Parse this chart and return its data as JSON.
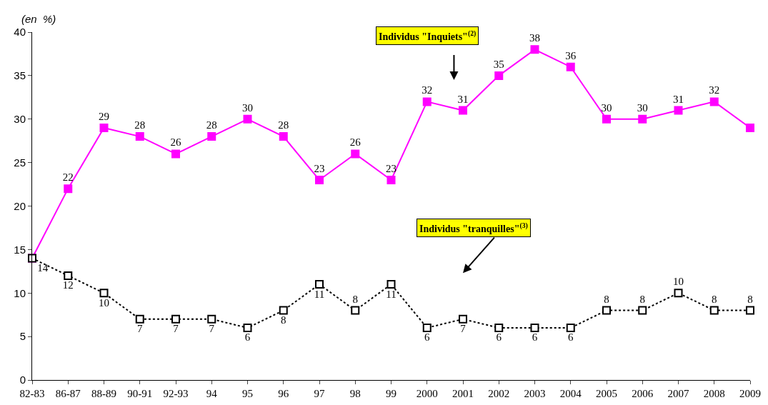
{
  "chart_data": {
    "type": "line",
    "ylabel": "(en  %)",
    "categories": [
      "82-83",
      "86-87",
      "88-89",
      "90-91",
      "92-93",
      "94",
      "95",
      "96",
      "97",
      "98",
      "99",
      "2000",
      "2001",
      "2002",
      "2003",
      "2004",
      "2005",
      "2006",
      "2007",
      "2008",
      "2009"
    ],
    "series": [
      {
        "color": "#ff00ff",
        "line_style": "solid",
        "values": [
          14,
          22,
          29,
          28,
          26,
          28,
          30,
          28,
          23,
          26,
          23,
          32,
          31,
          35,
          38,
          36,
          30,
          30,
          31,
          32,
          29
        ],
        "value_labels": [
          null,
          "22",
          "29",
          "28",
          "26",
          "28",
          "30",
          "28",
          "23",
          "26",
          "23",
          "32",
          "31",
          "35",
          "38",
          "36",
          "30",
          "30",
          "31",
          "32",
          null
        ]
      },
      {
        "color": "#000000",
        "line_style": "dotted",
        "values": [
          14,
          12,
          10,
          7,
          7,
          7,
          6,
          8,
          11,
          8,
          11,
          6,
          7,
          6,
          6,
          6,
          8,
          8,
          10,
          8,
          8
        ],
        "value_labels": [
          "14",
          "12",
          "10",
          "7",
          "7",
          "7",
          "6",
          "8",
          "11",
          "8",
          "11",
          "6",
          "7",
          "6",
          "6",
          "6",
          "8",
          "8",
          "10",
          "8",
          "8"
        ]
      }
    ],
    "annotations": [
      "Individus \"Inquiets\"$^{(2)}$",
      "Individus \"tranquilles\"$^{(3)}$"
    ],
    "ylim": [
      0,
      40
    ],
    "yticks": [
      0,
      5,
      10,
      15,
      20,
      25,
      30,
      35,
      40
    ],
    "marker": "square",
    "grid": false
  }
}
